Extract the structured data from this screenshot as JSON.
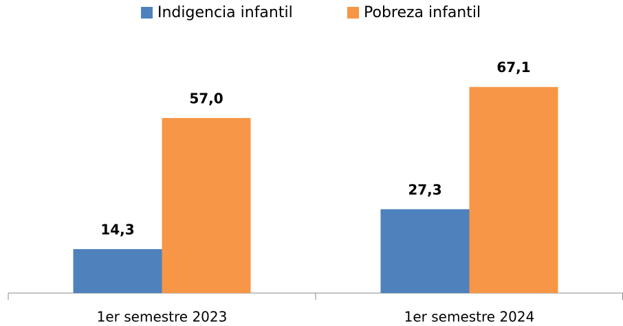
{
  "chart_data": {
    "type": "bar",
    "categories": [
      "1er semestre 2023",
      "1er semestre 2024"
    ],
    "series": [
      {
        "name": "Indigencia infantil",
        "color": "#4f81bd",
        "values": [
          14.3,
          27.3
        ],
        "value_labels": [
          "14,3",
          "27,3"
        ]
      },
      {
        "name": "Pobreza infantil",
        "color": "#f79646",
        "values": [
          57.0,
          67.1
        ],
        "value_labels": [
          "57,0",
          "67,1"
        ]
      }
    ],
    "ylim": [
      0,
      80
    ],
    "legend": "top"
  }
}
